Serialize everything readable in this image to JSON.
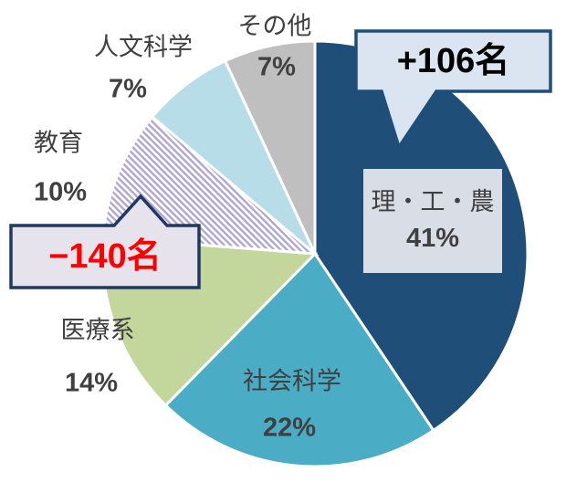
{
  "chart_data": {
    "type": "pie",
    "start_angle": "12-oclock",
    "direction": "clockwise",
    "legend": "none",
    "text_color": "#404040",
    "segments": [
      {
        "label": "理・工・農",
        "pct": 41,
        "pct_label": "41%",
        "color": "#1F4E79",
        "pattern": false
      },
      {
        "label": "社会科学",
        "pct": 22,
        "pct_label": "22%",
        "color": "#4BACC6",
        "pattern": false
      },
      {
        "label": "医療系",
        "pct": 14,
        "pct_label": "14%",
        "color": "#C3D69B",
        "pattern": false
      },
      {
        "label": "教育",
        "pct": 10,
        "pct_label": "10%",
        "color": "#FFFFFF",
        "pattern": true,
        "pattern_color": "#B1A6D0"
      },
      {
        "label": "人文科学",
        "pct": 7,
        "pct_label": "7%",
        "color": "#B7DEE8",
        "pattern": false
      },
      {
        "label": "その他",
        "pct": 7,
        "pct_label": "7%",
        "color": "#BFBFBF",
        "pattern": false
      }
    ],
    "inner_label_box": {
      "fill": "#D9DEE6",
      "for_segment": "理・工・農"
    }
  },
  "callouts": {
    "increase": {
      "text": "+106名",
      "target": "理・工・農",
      "text_color": "#000000",
      "fill": "#DBE5F1",
      "border": "#1F4E79"
    },
    "decrease": {
      "text": "−140名",
      "target": "教育",
      "text_color": "#FF0000",
      "fill": "#E6E3ED",
      "border": "#1F3864"
    }
  }
}
